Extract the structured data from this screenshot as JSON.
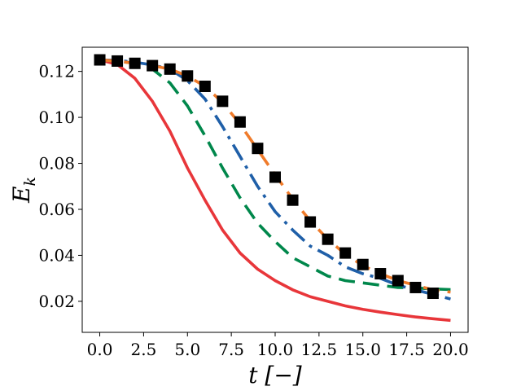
{
  "chart_data": {
    "type": "line",
    "xlabel": "t [−]",
    "ylabel": "E_k",
    "xlim": [
      -1.0,
      21.0
    ],
    "ylim": [
      0.0065,
      0.1305
    ],
    "xticks": [
      0.0,
      2.5,
      5.0,
      7.5,
      10.0,
      12.5,
      15.0,
      17.5,
      20.0
    ],
    "xtick_labels": [
      "0.0",
      "2.5",
      "5.0",
      "7.5",
      "10.0",
      "12.5",
      "15.0",
      "17.5",
      "20.0"
    ],
    "yticks": [
      0.02,
      0.04,
      0.06,
      0.08,
      0.1,
      0.12
    ],
    "ytick_labels": [
      "0.02",
      "0.04",
      "0.06",
      "0.08",
      "0.10",
      "0.12"
    ],
    "grid": false,
    "series": [
      {
        "style": "solid",
        "color": "#e8363a",
        "x": [
          0,
          1,
          2,
          3,
          4,
          5,
          6,
          7,
          8,
          9,
          10,
          11,
          12,
          13,
          14,
          15,
          16,
          17,
          18,
          19,
          20
        ],
        "y": [
          0.125,
          0.123,
          0.117,
          0.107,
          0.094,
          0.078,
          0.064,
          0.051,
          0.041,
          0.034,
          0.029,
          0.025,
          0.022,
          0.02,
          0.018,
          0.0165,
          0.0153,
          0.0142,
          0.0132,
          0.0124,
          0.0117
        ]
      },
      {
        "style": "dashed",
        "color": "#00874b",
        "x": [
          0,
          1,
          2,
          3,
          4,
          5,
          6,
          7,
          8,
          9,
          10,
          11,
          12,
          13,
          14,
          15,
          16,
          17,
          18,
          19,
          20
        ],
        "y": [
          0.125,
          0.1245,
          0.1235,
          0.121,
          0.115,
          0.105,
          0.092,
          0.078,
          0.065,
          0.054,
          0.046,
          0.039,
          0.035,
          0.031,
          0.029,
          0.028,
          0.027,
          0.026,
          0.0258,
          0.0254,
          0.0251
        ]
      },
      {
        "style": "dashdot",
        "color": "#1f5fa8",
        "x": [
          0,
          1,
          2,
          3,
          4,
          5,
          6,
          7,
          8,
          9,
          10,
          11,
          12,
          13,
          14,
          15,
          16,
          17,
          18,
          19,
          20
        ],
        "y": [
          0.125,
          0.1248,
          0.124,
          0.1228,
          0.121,
          0.116,
          0.108,
          0.096,
          0.083,
          0.07,
          0.059,
          0.051,
          0.044,
          0.04,
          0.035,
          0.032,
          0.03,
          0.027,
          0.025,
          0.023,
          0.021
        ]
      },
      {
        "style": "dashed",
        "color": "#f07b2a",
        "x": [
          0,
          1,
          2,
          3,
          4,
          5,
          6,
          7,
          8,
          9,
          10,
          11,
          12,
          13,
          14,
          15,
          16,
          17,
          18,
          19,
          20
        ],
        "y": [
          0.125,
          0.1245,
          0.1235,
          0.1225,
          0.121,
          0.118,
          0.1135,
          0.1065,
          0.097,
          0.086,
          0.075,
          0.0645,
          0.055,
          0.047,
          0.0405,
          0.0355,
          0.032,
          0.029,
          0.027,
          0.025,
          0.024
        ]
      },
      {
        "style": "markers",
        "marker": "square",
        "color": "#000000",
        "x": [
          0,
          1,
          2,
          3,
          4,
          5,
          6,
          7,
          8,
          9,
          10,
          11,
          12,
          13,
          14,
          15,
          16,
          17,
          18,
          19
        ],
        "y": [
          0.125,
          0.1245,
          0.1235,
          0.1225,
          0.121,
          0.118,
          0.1135,
          0.107,
          0.098,
          0.0865,
          0.074,
          0.064,
          0.0545,
          0.047,
          0.041,
          0.036,
          0.032,
          0.029,
          0.026,
          0.0235
        ]
      }
    ]
  }
}
